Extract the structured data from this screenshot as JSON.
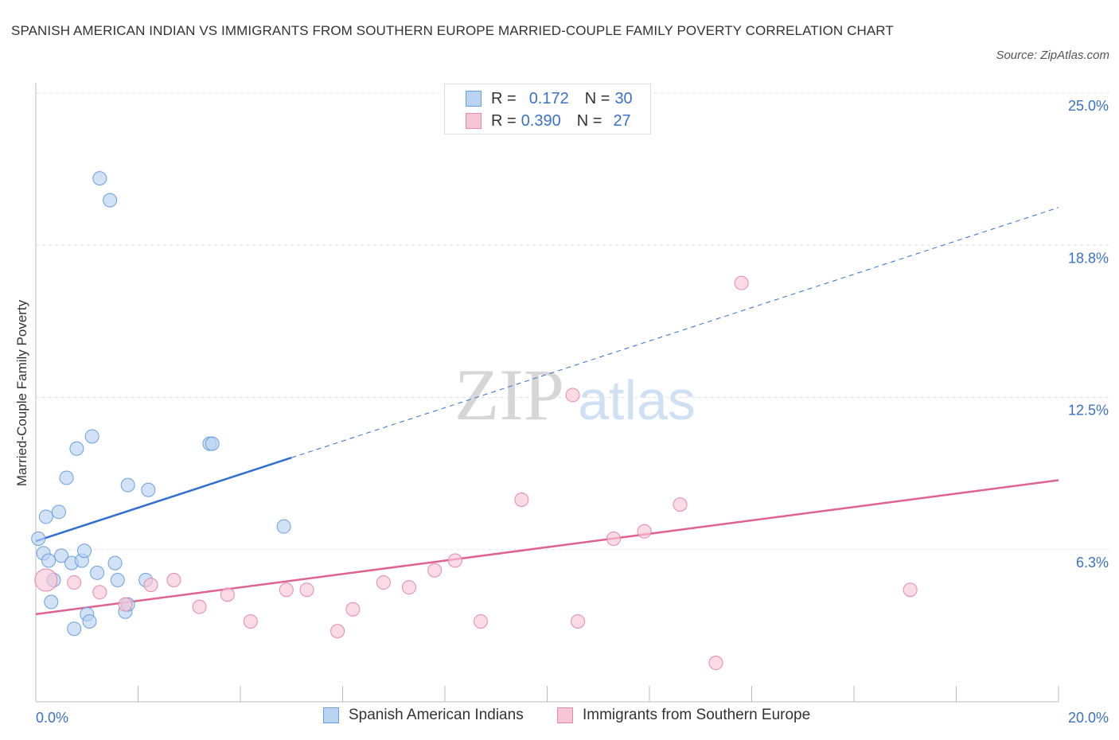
{
  "chart_data": {
    "type": "scatter",
    "title": "SPANISH AMERICAN INDIAN VS IMMIGRANTS FROM SOUTHERN EUROPE MARRIED-COUPLE FAMILY POVERTY CORRELATION CHART",
    "source": "Source: ZipAtlas.com",
    "xlabel": "",
    "ylabel": "Married-Couple Family Poverty",
    "xlim": [
      0,
      20
    ],
    "ylim": [
      0,
      25
    ],
    "x_tick_labels": [
      "0.0%",
      "20.0%"
    ],
    "y_ticks": [
      6.25,
      12.5,
      18.75,
      25
    ],
    "y_tick_labels": [
      "6.3%",
      "12.5%",
      "18.8%",
      "25.0%"
    ],
    "watermark": {
      "zip": "ZIP",
      "atlas": "atlas"
    },
    "legend": [
      {
        "r_label": "R =",
        "r": "0.172",
        "n_label": "N =",
        "n": "30"
      },
      {
        "r_label": "R =",
        "r": "0.390",
        "n_label": "N =",
        "n": "27"
      }
    ],
    "series": [
      {
        "name": "Spanish American Indians",
        "color": "#6a9fe0",
        "fill": "#b9d3f3",
        "line_color": "#2f6fd0",
        "trend": {
          "x0": 0,
          "y0": 6.6,
          "x1": 20,
          "y1": 20.3,
          "solid_until": 5.0
        },
        "points": [
          [
            1.25,
            21.5
          ],
          [
            1.45,
            20.6
          ],
          [
            0.05,
            6.7
          ],
          [
            0.2,
            7.6
          ],
          [
            0.45,
            7.8
          ],
          [
            0.6,
            9.2
          ],
          [
            0.8,
            10.4
          ],
          [
            1.1,
            10.9
          ],
          [
            0.15,
            6.1
          ],
          [
            0.25,
            5.8
          ],
          [
            0.35,
            5.0
          ],
          [
            0.5,
            6.0
          ],
          [
            0.7,
            5.7
          ],
          [
            0.9,
            5.8
          ],
          [
            0.95,
            6.2
          ],
          [
            1.2,
            5.3
          ],
          [
            1.55,
            5.7
          ],
          [
            1.6,
            5.0
          ],
          [
            1.8,
            8.9
          ],
          [
            2.2,
            8.7
          ],
          [
            2.15,
            5.0
          ],
          [
            3.4,
            10.6
          ],
          [
            3.45,
            10.6
          ],
          [
            4.85,
            7.2
          ],
          [
            0.3,
            4.1
          ],
          [
            1.0,
            3.6
          ],
          [
            1.05,
            3.3
          ],
          [
            0.75,
            3.0
          ],
          [
            1.75,
            3.7
          ],
          [
            1.8,
            4.0
          ]
        ]
      },
      {
        "name": "Immigrants from Southern Europe",
        "color": "#e58aaa",
        "fill": "#f7c6d6",
        "line_color": "#e0638f",
        "trend": {
          "x0": 0,
          "y0": 3.6,
          "x1": 20,
          "y1": 9.1,
          "solid_until": 20
        },
        "points": [
          [
            0.2,
            5.0
          ],
          [
            0.75,
            4.9
          ],
          [
            1.25,
            4.5
          ],
          [
            1.75,
            4.0
          ],
          [
            2.25,
            4.8
          ],
          [
            2.7,
            5.0
          ],
          [
            3.2,
            3.9
          ],
          [
            3.75,
            4.4
          ],
          [
            4.2,
            3.3
          ],
          [
            4.9,
            4.6
          ],
          [
            5.3,
            4.6
          ],
          [
            5.9,
            2.9
          ],
          [
            6.2,
            3.8
          ],
          [
            6.8,
            4.9
          ],
          [
            7.3,
            4.7
          ],
          [
            7.8,
            5.4
          ],
          [
            8.2,
            5.8
          ],
          [
            8.7,
            3.3
          ],
          [
            9.5,
            8.3
          ],
          [
            10.5,
            12.6
          ],
          [
            10.6,
            3.3
          ],
          [
            11.3,
            6.7
          ],
          [
            11.9,
            7.0
          ],
          [
            12.6,
            8.1
          ],
          [
            13.3,
            1.6
          ],
          [
            13.8,
            17.2
          ],
          [
            17.1,
            4.6
          ]
        ]
      }
    ]
  }
}
